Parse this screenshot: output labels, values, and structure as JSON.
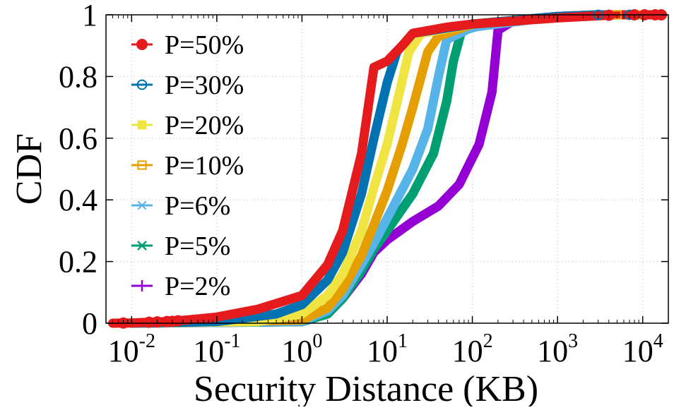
{
  "chart_data": {
    "type": "line",
    "title": "",
    "xlabel": "Security Distance (KB)",
    "ylabel": "CDF",
    "xscale": "log",
    "xlim": [
      0.005,
      20000
    ],
    "ylim": [
      0,
      1
    ],
    "grid": "dotted",
    "legend_position": "top-left",
    "x_ticks": [
      {
        "base": "10",
        "exp": "-2",
        "value": 0.01
      },
      {
        "base": "10",
        "exp": "-1",
        "value": 0.1
      },
      {
        "base": "10",
        "exp": "0",
        "value": 1
      },
      {
        "base": "10",
        "exp": "1",
        "value": 10
      },
      {
        "base": "10",
        "exp": "2",
        "value": 100
      },
      {
        "base": "10",
        "exp": "3",
        "value": 1000
      },
      {
        "base": "10",
        "exp": "4",
        "value": 10000
      }
    ],
    "y_ticks": [
      {
        "label": "0",
        "value": 0
      },
      {
        "label": "0.2",
        "value": 0.2
      },
      {
        "label": "0.4",
        "value": 0.4
      },
      {
        "label": "0.6",
        "value": 0.6
      },
      {
        "label": "0.8",
        "value": 0.8
      },
      {
        "label": "1",
        "value": 1
      }
    ],
    "series": [
      {
        "name": "P=2%",
        "color": "#9400d3",
        "marker": "plus",
        "points": [
          [
            0.01,
            0
          ],
          [
            1,
            0.005
          ],
          [
            2,
            0.03
          ],
          [
            3,
            0.08
          ],
          [
            5,
            0.16
          ],
          [
            7,
            0.23
          ],
          [
            10,
            0.27
          ],
          [
            20,
            0.33
          ],
          [
            40,
            0.38
          ],
          [
            70,
            0.45
          ],
          [
            120,
            0.58
          ],
          [
            170,
            0.75
          ],
          [
            200,
            0.95
          ],
          [
            300,
            0.98
          ],
          [
            1000,
            0.995
          ],
          [
            3000,
            1
          ],
          [
            17000,
            1
          ]
        ]
      },
      {
        "name": "P=5%",
        "color": "#009e73",
        "marker": "cross",
        "points": [
          [
            0.01,
            0
          ],
          [
            1,
            0.005
          ],
          [
            2,
            0.03
          ],
          [
            3,
            0.08
          ],
          [
            5,
            0.17
          ],
          [
            7,
            0.24
          ],
          [
            10,
            0.3
          ],
          [
            20,
            0.42
          ],
          [
            35,
            0.55
          ],
          [
            50,
            0.72
          ],
          [
            60,
            0.85
          ],
          [
            75,
            0.95
          ],
          [
            150,
            0.97
          ],
          [
            1000,
            0.995
          ],
          [
            3000,
            1
          ],
          [
            17000,
            1
          ]
        ]
      },
      {
        "name": "P=6%",
        "color": "#56b4e9",
        "marker": "asterisk",
        "points": [
          [
            0.01,
            0
          ],
          [
            1,
            0.006
          ],
          [
            2,
            0.04
          ],
          [
            3,
            0.09
          ],
          [
            5,
            0.19
          ],
          [
            7,
            0.26
          ],
          [
            10,
            0.34
          ],
          [
            20,
            0.5
          ],
          [
            30,
            0.63
          ],
          [
            40,
            0.8
          ],
          [
            50,
            0.92
          ],
          [
            100,
            0.96
          ],
          [
            1000,
            0.995
          ],
          [
            3000,
            1
          ],
          [
            17000,
            1
          ]
        ]
      },
      {
        "name": "P=10%",
        "color": "#e69f00",
        "marker": "square-open",
        "points": [
          [
            0.01,
            0
          ],
          [
            1,
            0.01
          ],
          [
            2,
            0.05
          ],
          [
            3,
            0.11
          ],
          [
            5,
            0.22
          ],
          [
            7,
            0.32
          ],
          [
            10,
            0.43
          ],
          [
            15,
            0.58
          ],
          [
            20,
            0.7
          ],
          [
            30,
            0.88
          ],
          [
            40,
            0.93
          ],
          [
            100,
            0.97
          ],
          [
            1000,
            0.995
          ],
          [
            3000,
            1
          ],
          [
            17000,
            1
          ]
        ]
      },
      {
        "name": "P=20%",
        "color": "#f0e442",
        "marker": "square",
        "points": [
          [
            0.01,
            0
          ],
          [
            0.3,
            0.005
          ],
          [
            1,
            0.03
          ],
          [
            2,
            0.09
          ],
          [
            3,
            0.16
          ],
          [
            5,
            0.3
          ],
          [
            7,
            0.44
          ],
          [
            10,
            0.58
          ],
          [
            14,
            0.75
          ],
          [
            18,
            0.88
          ],
          [
            25,
            0.94
          ],
          [
            100,
            0.97
          ],
          [
            1000,
            0.995
          ],
          [
            3000,
            1
          ],
          [
            17000,
            1
          ]
        ]
      },
      {
        "name": "P=30%",
        "color": "#0072b2",
        "marker": "circle-open",
        "points": [
          [
            0.01,
            0
          ],
          [
            0.1,
            0.005
          ],
          [
            0.5,
            0.03
          ],
          [
            1,
            0.06
          ],
          [
            2,
            0.14
          ],
          [
            3,
            0.23
          ],
          [
            5,
            0.42
          ],
          [
            7,
            0.6
          ],
          [
            10,
            0.78
          ],
          [
            13,
            0.88
          ],
          [
            20,
            0.94
          ],
          [
            100,
            0.97
          ],
          [
            1000,
            0.995
          ],
          [
            3000,
            1
          ],
          [
            17000,
            1
          ]
        ]
      },
      {
        "name": "P=50%",
        "color": "#e41a1c",
        "marker": "circle",
        "points": [
          [
            0.006,
            0
          ],
          [
            0.01,
            0.001
          ],
          [
            0.03,
            0.006
          ],
          [
            0.1,
            0.02
          ],
          [
            0.3,
            0.045
          ],
          [
            1,
            0.09
          ],
          [
            2,
            0.19
          ],
          [
            3,
            0.3
          ],
          [
            5,
            0.55
          ],
          [
            7,
            0.83
          ],
          [
            10,
            0.85
          ],
          [
            15,
            0.9
          ],
          [
            20,
            0.94
          ],
          [
            50,
            0.96
          ],
          [
            100,
            0.97
          ],
          [
            1000,
            0.99
          ],
          [
            5000,
            1
          ],
          [
            17000,
            1
          ]
        ]
      }
    ],
    "marker_samples": [
      {
        "series": "P=50%",
        "x": [
          0.008,
          0.016,
          0.02,
          0.026,
          0.03,
          0.035
        ]
      },
      {
        "series": "P=30%",
        "x": [
          3000,
          7000
        ]
      },
      {
        "series": "P=10%",
        "x": [
          5000,
          10000
        ]
      },
      {
        "series": "P=50%",
        "x": [
          4000,
          8000,
          10500,
          14000,
          16500
        ]
      }
    ]
  }
}
